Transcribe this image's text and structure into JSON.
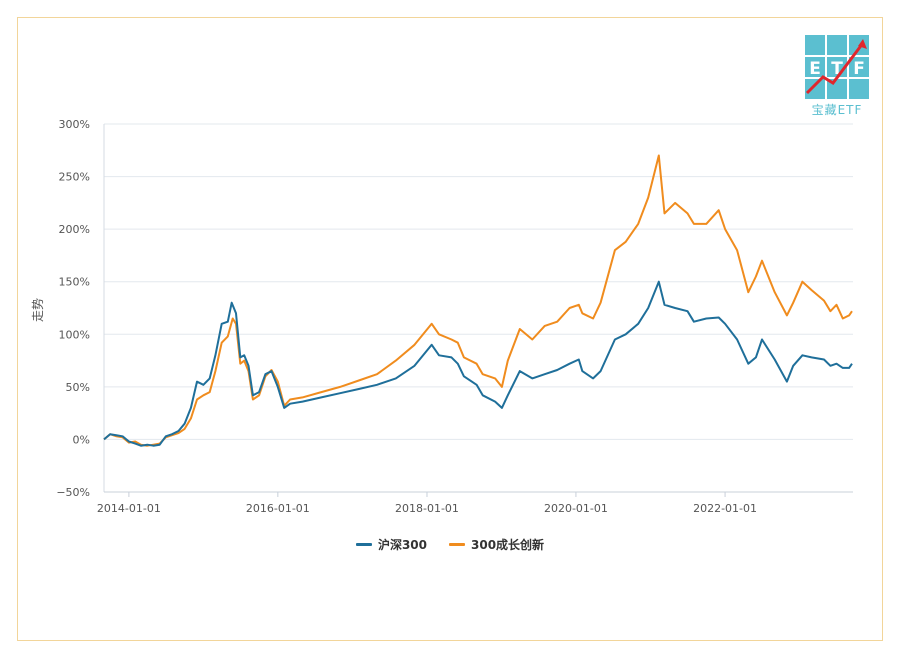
{
  "logo": {
    "text": "宝藏ETF",
    "letters": [
      "E",
      "T",
      "F"
    ]
  },
  "chart_data": {
    "type": "line",
    "title": "",
    "xlabel": "",
    "ylabel": "走势",
    "ylim": [
      -50,
      300
    ],
    "xlim": [
      "2013-09-01",
      "2023-09-20"
    ],
    "y_ticks": [
      "300%",
      "250%",
      "200%",
      "150%",
      "100%",
      "50%",
      "0%",
      "−50%"
    ],
    "y_tick_values": [
      300,
      250,
      200,
      150,
      100,
      50,
      0,
      -50
    ],
    "x_ticks": [
      "2014-01-01",
      "2016-01-01",
      "2018-01-01",
      "2020-01-01",
      "2022-01-01"
    ],
    "grid": true,
    "legend": "bottom",
    "series": [
      {
        "name": "沪深300",
        "color": "#1f6f9a",
        "points": [
          [
            "2013-09-01",
            0
          ],
          [
            "2013-10-01",
            5
          ],
          [
            "2013-11-01",
            4
          ],
          [
            "2013-12-01",
            3
          ],
          [
            "2014-01-01",
            -2
          ],
          [
            "2014-02-01",
            -4
          ],
          [
            "2014-03-01",
            -6
          ],
          [
            "2014-04-01",
            -5
          ],
          [
            "2014-05-01",
            -6
          ],
          [
            "2014-06-01",
            -5
          ],
          [
            "2014-07-01",
            3
          ],
          [
            "2014-08-01",
            5
          ],
          [
            "2014-09-01",
            8
          ],
          [
            "2014-10-01",
            15
          ],
          [
            "2014-11-01",
            30
          ],
          [
            "2014-12-01",
            55
          ],
          [
            "2015-01-01",
            52
          ],
          [
            "2015-02-01",
            58
          ],
          [
            "2015-03-01",
            80
          ],
          [
            "2015-04-01",
            110
          ],
          [
            "2015-05-01",
            112
          ],
          [
            "2015-05-20",
            130
          ],
          [
            "2015-06-10",
            120
          ],
          [
            "2015-07-01",
            78
          ],
          [
            "2015-07-20",
            80
          ],
          [
            "2015-08-10",
            70
          ],
          [
            "2015-09-01",
            42
          ],
          [
            "2015-10-01",
            45
          ],
          [
            "2015-11-01",
            62
          ],
          [
            "2015-12-01",
            65
          ],
          [
            "2016-01-01",
            50
          ],
          [
            "2016-02-01",
            30
          ],
          [
            "2016-03-01",
            34
          ],
          [
            "2016-05-01",
            36
          ],
          [
            "2016-08-01",
            40
          ],
          [
            "2016-11-01",
            44
          ],
          [
            "2017-02-01",
            48
          ],
          [
            "2017-05-01",
            52
          ],
          [
            "2017-08-01",
            58
          ],
          [
            "2017-11-01",
            70
          ],
          [
            "2018-01-24",
            90
          ],
          [
            "2018-03-01",
            80
          ],
          [
            "2018-05-01",
            78
          ],
          [
            "2018-06-01",
            72
          ],
          [
            "2018-07-01",
            60
          ],
          [
            "2018-09-01",
            52
          ],
          [
            "2018-10-01",
            42
          ],
          [
            "2018-12-01",
            36
          ],
          [
            "2019-01-03",
            30
          ],
          [
            "2019-02-01",
            42
          ],
          [
            "2019-04-01",
            65
          ],
          [
            "2019-06-01",
            58
          ],
          [
            "2019-08-01",
            62
          ],
          [
            "2019-10-01",
            66
          ],
          [
            "2019-12-01",
            72
          ],
          [
            "2020-01-15",
            76
          ],
          [
            "2020-02-01",
            65
          ],
          [
            "2020-03-25",
            58
          ],
          [
            "2020-05-01",
            65
          ],
          [
            "2020-07-10",
            95
          ],
          [
            "2020-09-01",
            100
          ],
          [
            "2020-11-01",
            110
          ],
          [
            "2020-12-20",
            125
          ],
          [
            "2021-02-10",
            150
          ],
          [
            "2021-03-10",
            128
          ],
          [
            "2021-05-01",
            125
          ],
          [
            "2021-07-01",
            122
          ],
          [
            "2021-08-01",
            112
          ],
          [
            "2021-10-01",
            115
          ],
          [
            "2021-12-01",
            116
          ],
          [
            "2022-01-01",
            110
          ],
          [
            "2022-03-01",
            95
          ],
          [
            "2022-04-25",
            72
          ],
          [
            "2022-06-01",
            78
          ],
          [
            "2022-07-01",
            95
          ],
          [
            "2022-09-01",
            76
          ],
          [
            "2022-10-31",
            55
          ],
          [
            "2022-12-01",
            70
          ],
          [
            "2023-01-15",
            80
          ],
          [
            "2023-03-01",
            78
          ],
          [
            "2023-05-01",
            76
          ],
          [
            "2023-06-01",
            70
          ],
          [
            "2023-07-01",
            72
          ],
          [
            "2023-08-01",
            68
          ],
          [
            "2023-09-01",
            68
          ],
          [
            "2023-09-15",
            72
          ]
        ]
      },
      {
        "name": "300成长创新",
        "color": "#f08c1e",
        "points": [
          [
            "2013-09-01",
            0
          ],
          [
            "2013-10-01",
            5
          ],
          [
            "2013-11-01",
            3
          ],
          [
            "2013-12-01",
            2
          ],
          [
            "2014-01-01",
            -3
          ],
          [
            "2014-02-01",
            -2
          ],
          [
            "2014-03-01",
            -5
          ],
          [
            "2014-04-01",
            -6
          ],
          [
            "2014-05-01",
            -5
          ],
          [
            "2014-06-01",
            -4
          ],
          [
            "2014-07-01",
            2
          ],
          [
            "2014-08-01",
            4
          ],
          [
            "2014-09-01",
            6
          ],
          [
            "2014-10-01",
            10
          ],
          [
            "2014-11-01",
            20
          ],
          [
            "2014-12-01",
            38
          ],
          [
            "2015-01-01",
            42
          ],
          [
            "2015-02-01",
            45
          ],
          [
            "2015-03-01",
            65
          ],
          [
            "2015-04-01",
            92
          ],
          [
            "2015-05-01",
            98
          ],
          [
            "2015-05-25",
            115
          ],
          [
            "2015-06-10",
            110
          ],
          [
            "2015-07-01",
            72
          ],
          [
            "2015-07-20",
            75
          ],
          [
            "2015-08-10",
            65
          ],
          [
            "2015-09-01",
            38
          ],
          [
            "2015-10-01",
            42
          ],
          [
            "2015-11-01",
            60
          ],
          [
            "2015-12-01",
            66
          ],
          [
            "2016-01-01",
            55
          ],
          [
            "2016-02-01",
            32
          ],
          [
            "2016-03-01",
            38
          ],
          [
            "2016-05-01",
            40
          ],
          [
            "2016-08-01",
            45
          ],
          [
            "2016-11-01",
            50
          ],
          [
            "2017-02-01",
            56
          ],
          [
            "2017-05-01",
            62
          ],
          [
            "2017-08-01",
            75
          ],
          [
            "2017-11-01",
            90
          ],
          [
            "2018-01-24",
            110
          ],
          [
            "2018-03-01",
            100
          ],
          [
            "2018-05-01",
            95
          ],
          [
            "2018-06-01",
            92
          ],
          [
            "2018-07-01",
            78
          ],
          [
            "2018-09-01",
            72
          ],
          [
            "2018-10-01",
            62
          ],
          [
            "2018-12-01",
            58
          ],
          [
            "2019-01-03",
            50
          ],
          [
            "2019-02-01",
            75
          ],
          [
            "2019-04-01",
            105
          ],
          [
            "2019-06-01",
            95
          ],
          [
            "2019-08-01",
            108
          ],
          [
            "2019-10-01",
            112
          ],
          [
            "2019-12-01",
            125
          ],
          [
            "2020-01-15",
            128
          ],
          [
            "2020-02-01",
            120
          ],
          [
            "2020-03-25",
            115
          ],
          [
            "2020-05-01",
            130
          ],
          [
            "2020-07-10",
            180
          ],
          [
            "2020-09-01",
            188
          ],
          [
            "2020-11-01",
            205
          ],
          [
            "2020-12-20",
            230
          ],
          [
            "2021-02-10",
            270
          ],
          [
            "2021-03-10",
            215
          ],
          [
            "2021-05-01",
            225
          ],
          [
            "2021-07-01",
            215
          ],
          [
            "2021-08-01",
            205
          ],
          [
            "2021-10-01",
            205
          ],
          [
            "2021-12-01",
            218
          ],
          [
            "2022-01-01",
            200
          ],
          [
            "2022-03-01",
            180
          ],
          [
            "2022-04-25",
            140
          ],
          [
            "2022-06-01",
            155
          ],
          [
            "2022-07-01",
            170
          ],
          [
            "2022-09-01",
            140
          ],
          [
            "2022-10-31",
            118
          ],
          [
            "2022-12-01",
            130
          ],
          [
            "2023-01-15",
            150
          ],
          [
            "2023-03-01",
            142
          ],
          [
            "2023-05-01",
            132
          ],
          [
            "2023-06-01",
            122
          ],
          [
            "2023-07-01",
            128
          ],
          [
            "2023-08-01",
            115
          ],
          [
            "2023-09-01",
            118
          ],
          [
            "2023-09-15",
            122
          ]
        ]
      }
    ]
  }
}
